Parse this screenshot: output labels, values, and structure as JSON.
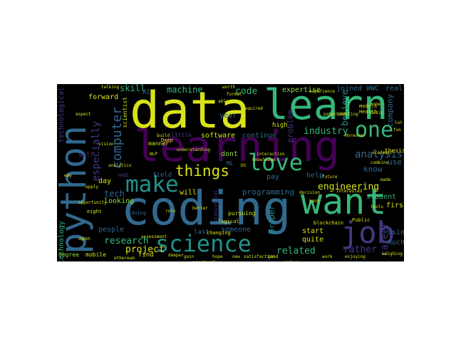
{
  "colors": {
    "background": "#000000",
    "page": "#ffffff",
    "yellow": "#d8e219",
    "green": "#35b779",
    "teal": "#21918c",
    "blue": "#31688e",
    "purple": "#443983",
    "violet": "#440154",
    "lime": "#90d743"
  },
  "words": {
    "data": "data",
    "learn": "learn",
    "learning": "learning",
    "coding": "coding",
    "want": "want",
    "python": "python",
    "job": "job",
    "science": "science",
    "make": "make",
    "love": "love",
    "one": "one",
    "things": "things",
    "computer": "computer",
    "especially": "especially",
    "engineering": "engineering",
    "analysis": "analysis",
    "industry": "industry",
    "research": "research",
    "related": "related",
    "project": "project",
    "rather": "rather",
    "career": "career",
    "machine": "machine",
    "code": "code",
    "skill": "skill",
    "believe": "believe",
    "company": "company",
    "expertise": "expertise",
    "joined_wwc": "joined WWC",
    "real": "real",
    "technological": "technological",
    "technology": "technology",
    "tech": "tech",
    "programming": "programming",
    "software": "software",
    "continue": "continue",
    "know": "know",
    "use": "use",
    "student": "student",
    "using": "using",
    "much": "much",
    "first": "first",
    "start": "start",
    "quite": "quite",
    "proper": "proper",
    "someone": "someone",
    "problem": "problem",
    "help": "help",
    "will": "will",
    "field": "field",
    "day": "day",
    "looking": "looking",
    "people": "people",
    "forward": "forward",
    "year": "year",
    "dont": "dont",
    "pay": "pay",
    "last": "last",
    "find": "find",
    "mobile": "mobile",
    "degree": "degree",
    "web": "web",
    "self": "self",
    "scientist": "scientist",
    "blockchain": "blockchain",
    "thesis": "thesis",
    "high": "high",
    "manner": "manner",
    "little": "little",
    "ml": "ML",
    "ai": "AI",
    "deep": "Deep",
    "upon": "upon",
    "eight": "eight",
    "public": "Public",
    "health": "Health",
    "models": "models",
    "logical": "logical",
    "changing": "changing",
    "pursuing": "pursuing",
    "interested": "interested",
    "assessment": "assessment",
    "doing": "doing",
    "statistical": "Statistical",
    "knowledge": "knowledge",
    "decision": "decision",
    "combine": "combine",
    "come": "come",
    "starting": "starting",
    "weighing": "weighing",
    "ethereum": "ethereum",
    "formal": "formal",
    "worth": "worth",
    "moreover": "Moreover",
    "academic": "academic",
    "talking": "talking",
    "ds": "DS",
    "build": "build",
    "nlp": "NLP",
    "interaction": "interaction",
    "tools": "tools",
    "lot": "lot",
    "made": "made",
    "able": "able",
    "vision": "vision",
    "bank": "bank",
    "analytics": "analytics",
    "required": "required",
    "potential": "potential",
    "aspect": "aspect",
    "fun": "fun",
    "role": "role",
    "satisfaction": "satisfaction",
    "basic": "basic",
    "enjoying": "enjoying",
    "hope": "hope",
    "gain": "gain",
    "new": "new",
    "way": "way",
    "apply": "apply",
    "deeper": "deeper",
    "practical": "practical",
    "solve": "solve",
    "work": "work",
    "good": "good",
    "experience": "experience",
    "opportunity": "opportunity",
    "better": "better",
    "understanding": "understanding",
    "future": "future"
  }
}
